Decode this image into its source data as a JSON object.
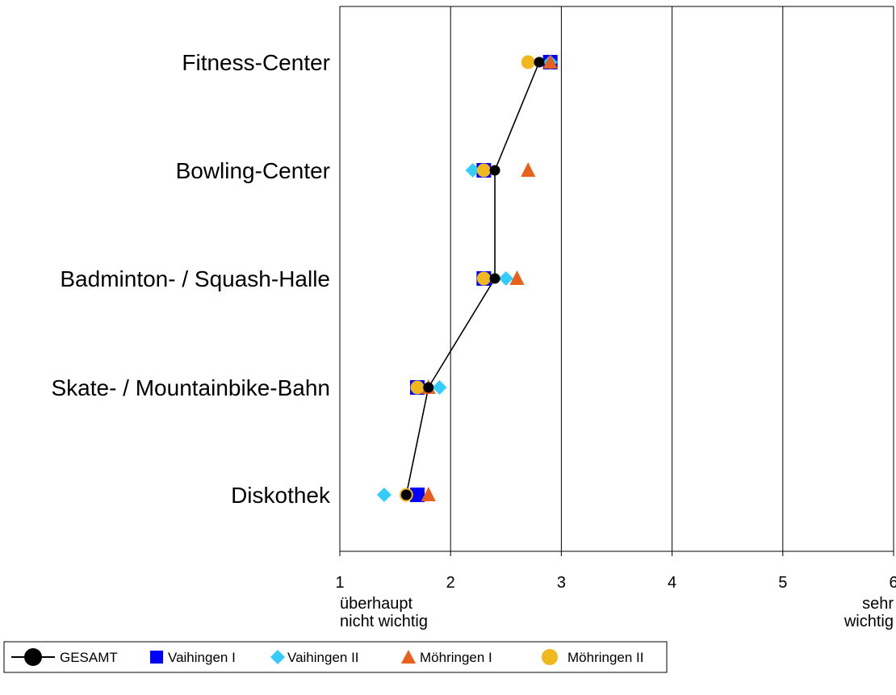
{
  "chart_data": {
    "type": "scatter",
    "orientation": "horizontal",
    "categories": [
      "Fitness-Center",
      "Bowling-Center",
      "Badminton- / Squash-Halle",
      "Skate- / Mountainbike-Bahn",
      "Diskothek"
    ],
    "xlim": [
      1,
      6
    ],
    "x_ticks": [
      "1",
      "2",
      "3",
      "4",
      "5",
      "6"
    ],
    "x_min_label_line1": "überhaupt",
    "x_min_label_line2": "nicht wichtig",
    "x_max_label_line1": "sehr",
    "x_max_label_line2": "wichtig",
    "grid": "vertical",
    "legend_position": "bottom",
    "series": [
      {
        "name": "GESAMT",
        "marker": "circle-line",
        "color": "#000000",
        "values": [
          2.8,
          2.4,
          2.4,
          1.8,
          1.6
        ]
      },
      {
        "name": "Vaihingen I",
        "marker": "square",
        "color": "#0000ff",
        "values": [
          2.9,
          2.3,
          2.3,
          1.7,
          1.7
        ]
      },
      {
        "name": "Vaihingen II",
        "marker": "diamond",
        "color": "#33ccff",
        "values": [
          2.9,
          2.2,
          2.5,
          1.9,
          1.4
        ]
      },
      {
        "name": "Möhringen I",
        "marker": "triangle",
        "color": "#e8601c",
        "values": [
          2.9,
          2.7,
          2.6,
          1.8,
          1.8
        ]
      },
      {
        "name": "Möhringen II",
        "marker": "circle",
        "color": "#f0b81c",
        "values": [
          2.7,
          2.3,
          2.3,
          1.7,
          1.6
        ]
      }
    ]
  }
}
